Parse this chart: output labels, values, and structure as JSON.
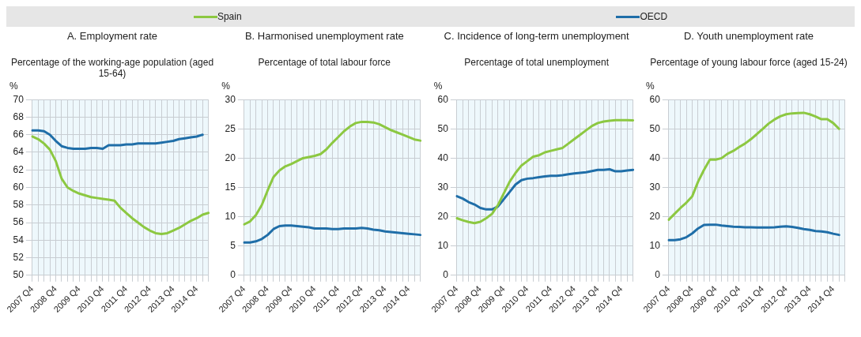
{
  "chart_data": [
    {
      "type": "line",
      "title": "A. Employment rate",
      "subtitle": "Percentage of the working-age population (aged 15-64)",
      "ylabel": "%",
      "legend": "top",
      "grid": true,
      "marker": "none",
      "line_style": "solid",
      "categories": [
        "2007 Q4",
        null,
        null,
        null,
        "2008 Q4",
        null,
        null,
        null,
        "2009 Q4",
        null,
        null,
        null,
        "2010 Q4",
        null,
        null,
        null,
        "2011 Q4",
        null,
        null,
        null,
        "2012 Q4",
        null,
        null,
        null,
        "2013 Q4",
        null,
        null,
        null,
        "2014 Q4",
        null,
        null
      ],
      "ylim": [
        50,
        70
      ],
      "yticks": [
        50,
        52,
        54,
        56,
        58,
        60,
        62,
        64,
        66,
        68,
        70
      ],
      "series": [
        {
          "name": "Spain",
          "color": "#8cc841",
          "values": [
            65.8,
            65.5,
            65.0,
            64.3,
            63.0,
            61.0,
            60.0,
            59.6,
            59.3,
            59.1,
            58.9,
            58.8,
            58.7,
            58.6,
            58.5,
            57.7,
            57.1,
            56.5,
            56.0,
            55.5,
            55.1,
            54.8,
            54.7,
            54.8,
            55.1,
            55.4,
            55.8,
            56.2,
            56.5,
            56.9,
            57.1
          ]
        },
        {
          "name": "OECD",
          "color": "#1f6ea8",
          "values": [
            66.5,
            66.5,
            66.4,
            66.0,
            65.3,
            64.7,
            64.5,
            64.4,
            64.4,
            64.4,
            64.5,
            64.5,
            64.4,
            64.8,
            64.8,
            64.8,
            64.9,
            64.9,
            65.0,
            65.0,
            65.0,
            65.0,
            65.1,
            65.2,
            65.3,
            65.5,
            65.6,
            65.7,
            65.8,
            66.0,
            null
          ]
        }
      ]
    },
    {
      "type": "line",
      "title": "B. Harmonised unemployment rate",
      "subtitle": "Percentage of total labour force",
      "ylabel": "%",
      "grid": true,
      "marker": "none",
      "line_style": "solid",
      "categories": [
        "2007 Q4",
        null,
        null,
        null,
        "2008 Q4",
        null,
        null,
        null,
        "2009 Q4",
        null,
        null,
        null,
        "2010 Q4",
        null,
        null,
        null,
        "2011 Q4",
        null,
        null,
        null,
        "2012 Q4",
        null,
        null,
        null,
        "2013 Q4",
        null,
        null,
        null,
        "2014 Q4",
        null,
        null
      ],
      "ylim": [
        0,
        30
      ],
      "yticks": [
        0,
        5,
        10,
        15,
        20,
        25,
        30
      ],
      "series": [
        {
          "color": "#8cc841",
          "values": [
            8.7,
            9.2,
            10.3,
            12.0,
            14.5,
            16.8,
            17.9,
            18.6,
            19.0,
            19.5,
            20.0,
            20.2,
            20.4,
            20.7,
            21.5,
            22.6,
            23.6,
            24.6,
            25.4,
            26.0,
            26.2,
            26.2,
            26.1,
            25.8,
            25.3,
            24.8,
            24.4,
            24.0,
            23.6,
            23.2,
            23.0
          ]
        },
        {
          "color": "#1f6ea8",
          "values": [
            5.6,
            5.6,
            5.8,
            6.2,
            6.9,
            7.9,
            8.4,
            8.5,
            8.5,
            8.4,
            8.3,
            8.2,
            8.0,
            8.0,
            8.0,
            7.9,
            7.9,
            8.0,
            8.0,
            8.0,
            8.1,
            8.0,
            7.8,
            7.7,
            7.5,
            7.4,
            7.3,
            7.2,
            7.1,
            7.0,
            6.9
          ]
        }
      ]
    },
    {
      "type": "line",
      "title": "C. Incidence of long-term unemployment",
      "subtitle": "Percentage of total unemployment",
      "ylabel": "%",
      "grid": true,
      "marker": "none",
      "line_style": "solid",
      "categories": [
        "2007 Q4",
        null,
        null,
        null,
        "2008 Q4",
        null,
        null,
        null,
        "2009 Q4",
        null,
        null,
        null,
        "2010 Q4",
        null,
        null,
        null,
        "2011 Q4",
        null,
        null,
        null,
        "2012 Q4",
        null,
        null,
        null,
        "2013 Q4",
        null,
        null,
        null,
        "2014 Q4",
        null,
        null
      ],
      "ylim": [
        0,
        60
      ],
      "yticks": [
        0,
        10,
        20,
        30,
        40,
        50,
        60
      ],
      "series": [
        {
          "color": "#8cc841",
          "values": [
            19.5,
            18.8,
            18.2,
            17.8,
            18.3,
            19.5,
            21,
            24,
            28,
            32,
            35,
            37.5,
            39,
            40.5,
            41,
            42,
            42.5,
            43,
            43.5,
            45,
            46.5,
            48,
            49.5,
            51,
            52,
            52.5,
            52.8,
            53,
            53,
            53,
            52.9
          ]
        },
        {
          "color": "#1f6ea8",
          "values": [
            27,
            26.2,
            25,
            24.2,
            23,
            22.5,
            22.5,
            23.5,
            26,
            28.5,
            31,
            32.5,
            33,
            33.2,
            33.5,
            33.8,
            34,
            34,
            34.2,
            34.5,
            34.8,
            35,
            35.2,
            35.6,
            36,
            36,
            36.2,
            35.5,
            35.5,
            35.8,
            36
          ]
        }
      ]
    },
    {
      "type": "line",
      "title": "D. Youth unemployment rate",
      "subtitle": "Percentage of young labour force (aged 15-24)",
      "ylabel": "%",
      "grid": true,
      "marker": "none",
      "line_style": "solid",
      "categories": [
        "2007 Q4",
        null,
        null,
        null,
        "2008 Q4",
        null,
        null,
        null,
        "2009 Q4",
        null,
        null,
        null,
        "2010 Q4",
        null,
        null,
        null,
        "2011 Q4",
        null,
        null,
        null,
        "2012 Q4",
        null,
        null,
        null,
        "2013 Q4",
        null,
        null,
        null,
        "2014 Q4",
        null,
        null
      ],
      "ylim": [
        0,
        60
      ],
      "yticks": [
        0,
        10,
        20,
        30,
        40,
        50,
        60
      ],
      "series": [
        {
          "color": "#8cc841",
          "values": [
            19,
            21,
            23,
            24.8,
            27,
            32,
            36,
            39.5,
            39.5,
            40,
            41.5,
            42.5,
            43.8,
            45,
            46.5,
            48.2,
            50,
            51.8,
            53.2,
            54.3,
            55,
            55.3,
            55.4,
            55.5,
            55,
            54.2,
            53.3,
            53.3,
            52,
            50,
            null
          ]
        },
        {
          "color": "#1f6ea8",
          "values": [
            12,
            12,
            12.3,
            13,
            14.3,
            16,
            17.2,
            17.3,
            17.3,
            17,
            16.8,
            16.6,
            16.5,
            16.4,
            16.4,
            16.3,
            16.3,
            16.3,
            16.4,
            16.6,
            16.7,
            16.5,
            16.2,
            15.8,
            15.5,
            15.1,
            15,
            14.7,
            14.2,
            13.8,
            null
          ]
        }
      ]
    }
  ]
}
